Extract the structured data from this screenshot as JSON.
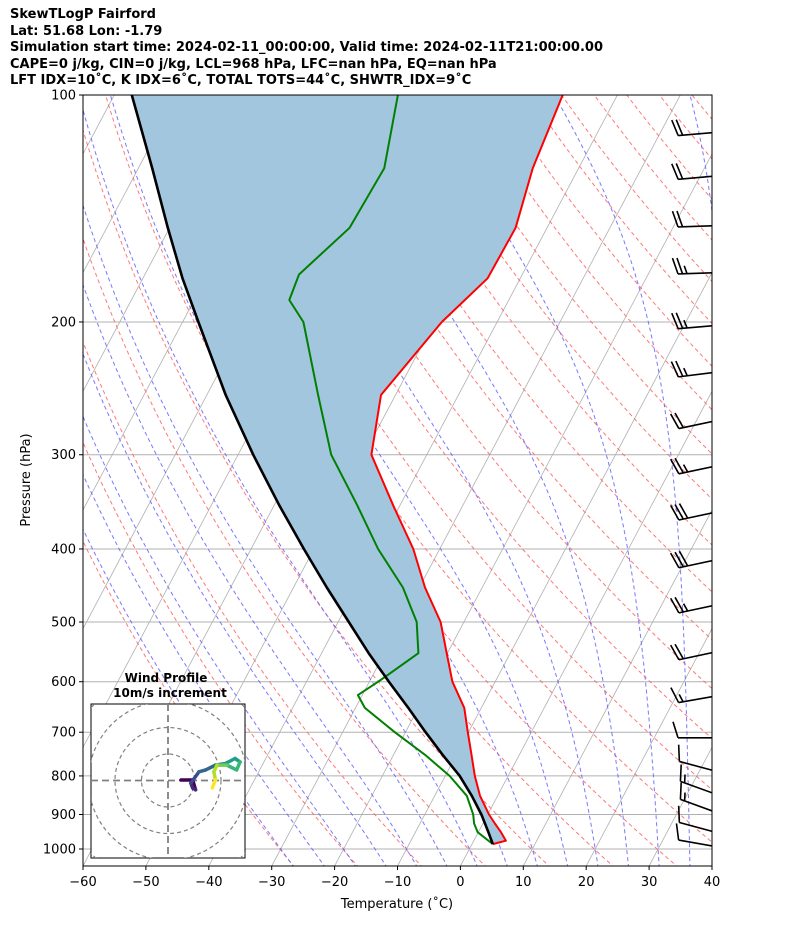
{
  "header": {
    "title": "SkewTLogP Fairford",
    "location": "Lat: 51.68   Lon: -1.79",
    "times": "Simulation start time: 2024-02-11_00:00:00, Valid time: 2024-02-11T21:00:00.00",
    "params": "CAPE=0 j/kg, CIN=0 j/kg, LCL=968 hPa, LFC=nan hPa, EQ=nan hPa",
    "indices": "LFT IDX=10˚C, K IDX=6˚C, TOTAL TOTS=44˚C, SHWTR_IDX=9˚C"
  },
  "chart_data": {
    "type": "line",
    "subtype": "skew-T log-P",
    "xlabel": "Temperature (˚C)",
    "ylabel": "Pressure (hPa)",
    "xlim": [
      -60,
      40
    ],
    "ylim": [
      1050,
      100
    ],
    "x_ticks": [
      "−60",
      "−50",
      "−40",
      "−30",
      "−20",
      "−10",
      "0",
      "10",
      "20",
      "30",
      "40"
    ],
    "x_tick_values": [
      -60,
      -50,
      -40,
      -30,
      -20,
      -10,
      0,
      10,
      20,
      30,
      40
    ],
    "y_ticks": [
      "100",
      "200",
      "300",
      "400",
      "500",
      "600",
      "700",
      "800",
      "900",
      "1000"
    ],
    "y_tick_values": [
      100,
      200,
      300,
      400,
      500,
      600,
      700,
      800,
      900,
      1000
    ],
    "grid": true,
    "colors": {
      "temperature": "#ff0000",
      "dewpoint": "#008000",
      "parcel": "#000000",
      "cin_fill": "#a3c6df",
      "dry_adiabat": "#ff6060",
      "moist_adiabat": "#6060ff",
      "isotherm": "#b0b0b0"
    },
    "series": [
      {
        "name": "Temperature",
        "pressure": [
          100,
          125,
          150,
          175,
          200,
          250,
          300,
          350,
          400,
          450,
          500,
          550,
          600,
          650,
          700,
          750,
          800,
          850,
          900,
          925,
          950,
          975,
          985
        ],
        "values": [
          -48.7,
          -47.3,
          -45.0,
          -45.2,
          -48.8,
          -52.3,
          -48.8,
          -41.1,
          -34.2,
          -29.1,
          -23.7,
          -20.1,
          -16.8,
          -12.7,
          -10.1,
          -7.6,
          -5.3,
          -2.8,
          0.2,
          1.9,
          3.6,
          5.1,
          3.3
        ]
      },
      {
        "name": "Dewpoint",
        "pressure": [
          100,
          125,
          150,
          173,
          187,
          200,
          250,
          300,
          350,
          400,
          450,
          500,
          550,
          600,
          625,
          650,
          700,
          750,
          800,
          850,
          900,
          925,
          950,
          985
        ],
        "values": [
          -74.9,
          -70.9,
          -71.4,
          -75.5,
          -74.9,
          -70.8,
          -62.3,
          -55.2,
          -46.8,
          -39.8,
          -32.6,
          -27.5,
          -24.6,
          -28.6,
          -30.7,
          -28.5,
          -21.7,
          -15.0,
          -9.3,
          -4.9,
          -2.3,
          -1.4,
          -0.1,
          3.3
        ]
      },
      {
        "name": "Parcel",
        "pressure": [
          100,
          125,
          150,
          175,
          200,
          250,
          300,
          350,
          400,
          450,
          500,
          550,
          600,
          650,
          700,
          750,
          800,
          850,
          900,
          950,
          985
        ],
        "values": [
          -117.2,
          -107.8,
          -100.3,
          -93.7,
          -87.5,
          -77.0,
          -67.6,
          -59.2,
          -51.6,
          -44.7,
          -38.3,
          -32.5,
          -26.9,
          -21.6,
          -16.8,
          -12.2,
          -7.7,
          -4.1,
          -1.0,
          1.6,
          3.3
        ]
      }
    ],
    "dry_adiabats_theta_K": [
      243,
      253,
      263,
      273,
      283,
      293,
      303,
      313,
      323,
      333,
      343,
      353,
      363,
      373,
      383,
      393,
      403,
      413,
      423,
      433,
      443,
      453,
      463,
      473
    ],
    "moist_adiabats_T1000_C": [
      -30,
      -25,
      -20,
      -15,
      -10,
      -5,
      0,
      5,
      10,
      15,
      20,
      25,
      30,
      35,
      40
    ],
    "wind_barbs": [
      {
        "p": 112,
        "speed_kt": 20,
        "dir_deg": 265
      },
      {
        "p": 128,
        "speed_kt": 20,
        "dir_deg": 265
      },
      {
        "p": 149,
        "speed_kt": 20,
        "dir_deg": 268
      },
      {
        "p": 172,
        "speed_kt": 25,
        "dir_deg": 268
      },
      {
        "p": 202,
        "speed_kt": 25,
        "dir_deg": 265
      },
      {
        "p": 233,
        "speed_kt": 25,
        "dir_deg": 263
      },
      {
        "p": 270,
        "speed_kt": 20,
        "dir_deg": 258
      },
      {
        "p": 310,
        "speed_kt": 25,
        "dir_deg": 258
      },
      {
        "p": 357,
        "speed_kt": 30,
        "dir_deg": 258
      },
      {
        "p": 413,
        "speed_kt": 30,
        "dir_deg": 258
      },
      {
        "p": 474,
        "speed_kt": 25,
        "dir_deg": 258
      },
      {
        "p": 547,
        "speed_kt": 20,
        "dir_deg": 258
      },
      {
        "p": 626,
        "speed_kt": 15,
        "dir_deg": 260
      },
      {
        "p": 712,
        "speed_kt": 10,
        "dir_deg": 270
      },
      {
        "p": 790,
        "speed_kt": 10,
        "dir_deg": 285
      },
      {
        "p": 848,
        "speed_kt": 15,
        "dir_deg": 290
      },
      {
        "p": 896,
        "speed_kt": 15,
        "dir_deg": 290
      },
      {
        "p": 952,
        "speed_kt": 10,
        "dir_deg": 285
      },
      {
        "p": 994,
        "speed_kt": 10,
        "dir_deg": 280
      }
    ],
    "hodograph": {
      "title": "Wind Profile",
      "subtitle": "10m/s increment",
      "ring_increment_ms": 10,
      "rings": 3,
      "u": [
        4.9,
        9.3,
        10.4,
        9.3,
        8.6,
        11.7,
        14.2,
        17.9,
        21.6,
        25.3,
        27.2,
        25.9,
        22.2,
        18.5,
        17.3,
        17.9,
        16.7
      ],
      "v": [
        0.2,
        0.2,
        -3.5,
        -2.8,
        -1.0,
        3.3,
        4.0,
        5.8,
        6.4,
        8.3,
        7.0,
        4.0,
        5.8,
        5.8,
        3.3,
        0.2,
        -2.8
      ],
      "colormap": "viridis"
    }
  }
}
